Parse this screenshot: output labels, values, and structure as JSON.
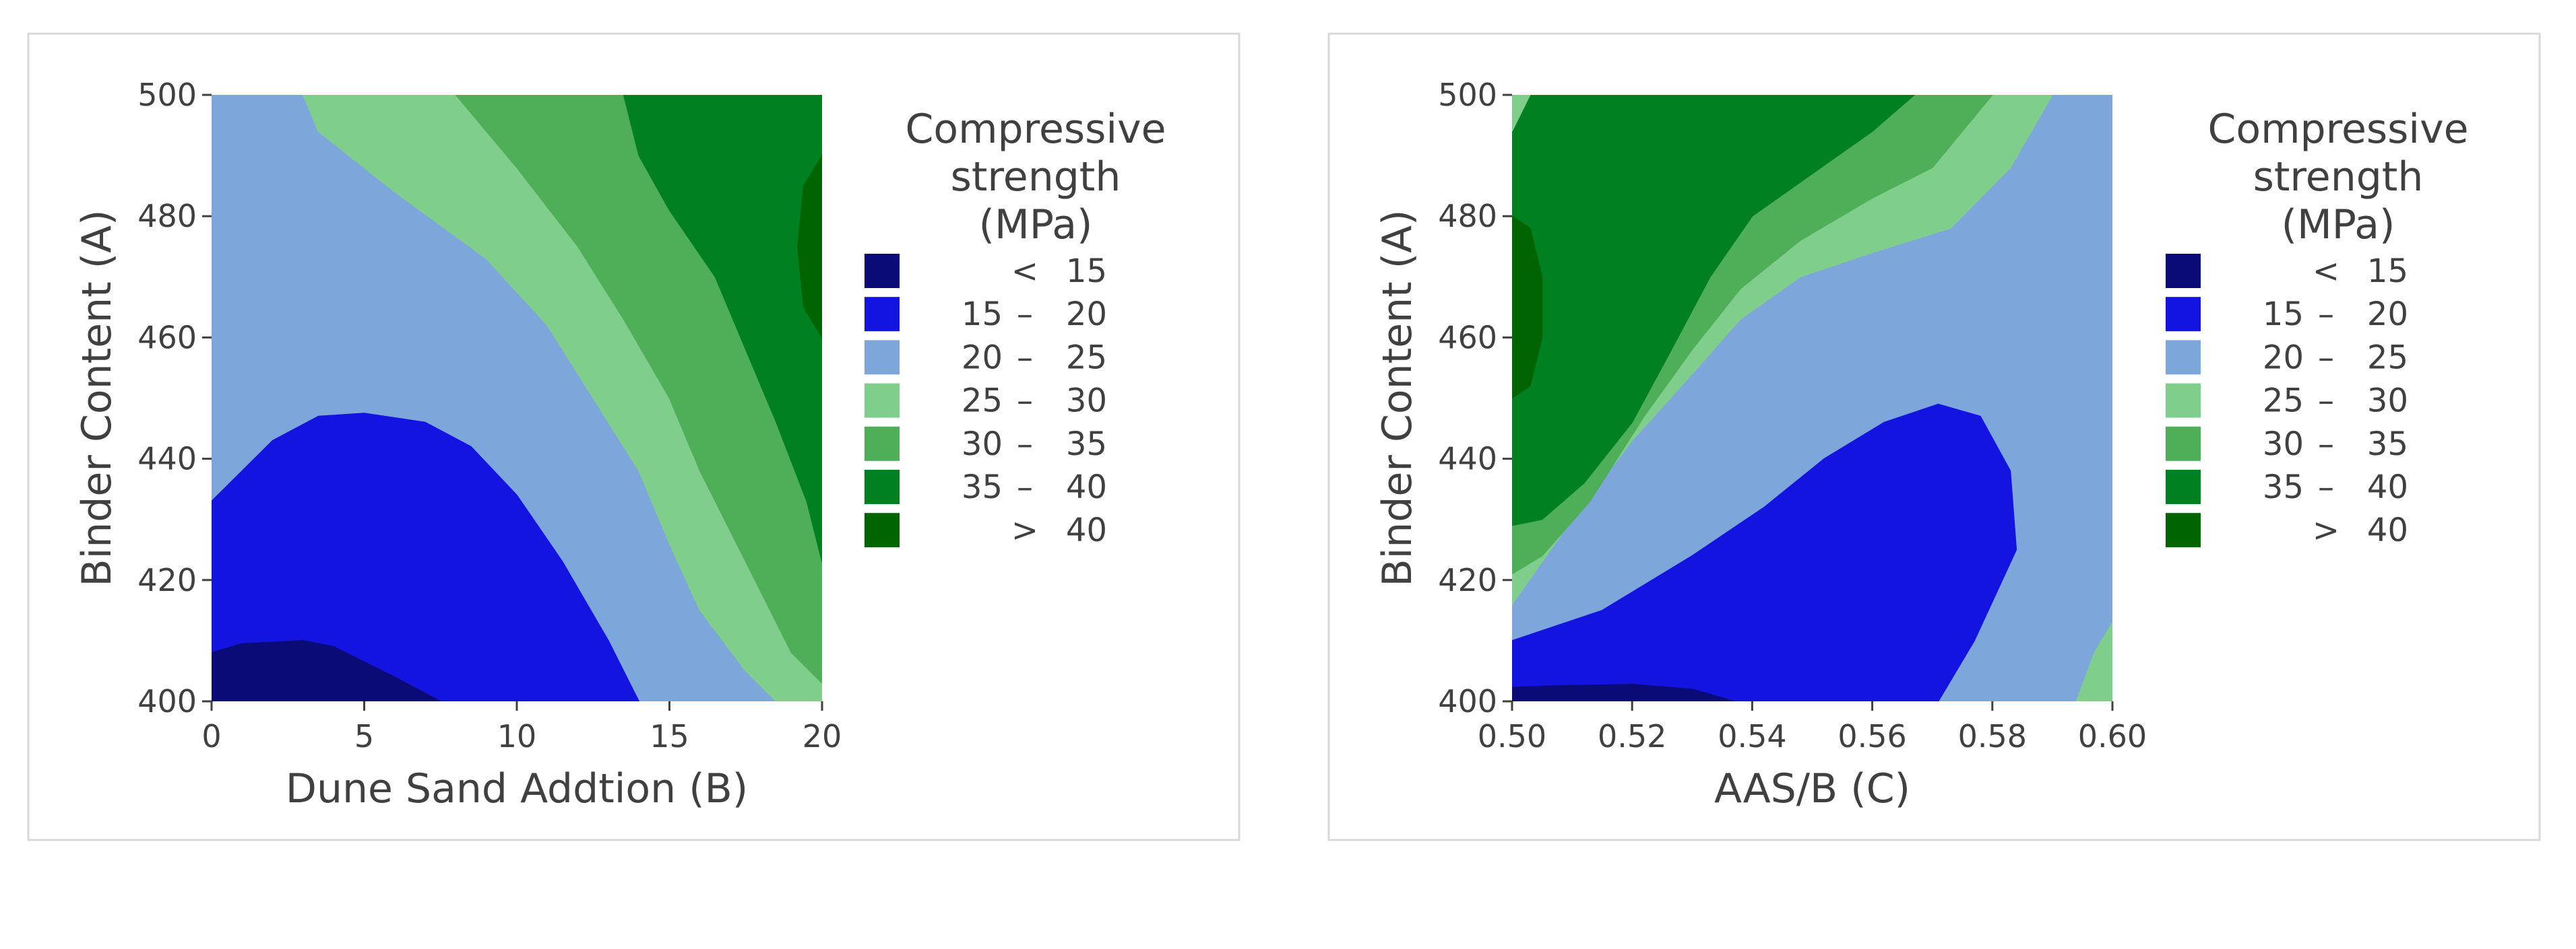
{
  "chart_data": [
    {
      "type": "contour",
      "xlabel": "Dune Sand Addtion (B)",
      "ylabel": "Binder Content (A)",
      "xlim": [
        0,
        20
      ],
      "ylim": [
        400,
        500
      ],
      "xticks": [
        "0",
        "5",
        "10",
        "15",
        "20"
      ],
      "yticks": [
        "400",
        "420",
        "440",
        "460",
        "480",
        "500"
      ],
      "legend": {
        "title_lines": [
          "Compressive",
          "strength",
          "(MPa)"
        ],
        "levels": [
          {
            "low": "",
            "sep": "<",
            "high": "15",
            "color": "#0b0b77"
          },
          {
            "low": "15",
            "sep": "–",
            "high": "20",
            "color": "#1414e0"
          },
          {
            "low": "20",
            "sep": "–",
            "high": "25",
            "color": "#7da7db"
          },
          {
            "low": "25",
            "sep": "–",
            "high": "30",
            "color": "#80ce8c"
          },
          {
            "low": "30",
            "sep": "–",
            "high": "35",
            "color": "#4faf58"
          },
          {
            "low": "35",
            "sep": "–",
            "high": "40",
            "color": "#008020"
          },
          {
            "low": "",
            "sep": ">",
            "high": "40",
            "color": "#006400"
          }
        ]
      },
      "regions": [
        {
          "level": 2,
          "points": [
            [
              0,
              400
            ],
            [
              20,
              400
            ],
            [
              20,
              500
            ],
            [
              0,
              500
            ]
          ]
        },
        {
          "level": 3,
          "points": [
            [
              3,
              500
            ],
            [
              3.5,
              494
            ],
            [
              6,
              484
            ],
            [
              9,
              473
            ],
            [
              11,
              462
            ],
            [
              12.5,
              450
            ],
            [
              14,
              438
            ],
            [
              15,
              426
            ],
            [
              16,
              415
            ],
            [
              17.5,
              405
            ],
            [
              18.5,
              400
            ],
            [
              20,
              400
            ],
            [
              20,
              500
            ]
          ]
        },
        {
          "level": 4,
          "points": [
            [
              8,
              500
            ],
            [
              10,
              488
            ],
            [
              12,
              475
            ],
            [
              13.5,
              463
            ],
            [
              15,
              450
            ],
            [
              16,
              438
            ],
            [
              17,
              428
            ],
            [
              18,
              418
            ],
            [
              19,
              408
            ],
            [
              20,
              403
            ],
            [
              20,
              500
            ]
          ]
        },
        {
          "level": 5,
          "points": [
            [
              13.5,
              500
            ],
            [
              14,
              490
            ],
            [
              15,
              481
            ],
            [
              16.5,
              470
            ],
            [
              17.5,
              458
            ],
            [
              18.5,
              446
            ],
            [
              19.5,
              433
            ],
            [
              20,
              423
            ],
            [
              20,
              500
            ]
          ]
        },
        {
          "level": 6,
          "points": [
            [
              20,
              490
            ],
            [
              19.4,
              485
            ],
            [
              19.2,
              475
            ],
            [
              19.4,
              465
            ],
            [
              20,
              460
            ]
          ]
        },
        {
          "level": 1,
          "points": [
            [
              0,
              400
            ],
            [
              14,
              400
            ],
            [
              13,
              410
            ],
            [
              11.5,
              423
            ],
            [
              10,
              434
            ],
            [
              8.5,
              442
            ],
            [
              7,
              446
            ],
            [
              5,
              447.5
            ],
            [
              3.5,
              447
            ],
            [
              2,
              443
            ],
            [
              0,
              433
            ]
          ]
        },
        {
          "level": 0,
          "points": [
            [
              0,
              400
            ],
            [
              7.5,
              400
            ],
            [
              6,
              404
            ],
            [
              4,
              409
            ],
            [
              3,
              410
            ],
            [
              1,
              409.5
            ],
            [
              0,
              408
            ]
          ]
        }
      ]
    },
    {
      "type": "contour",
      "xlabel": "AAS/B (C)",
      "ylabel": "Binder Content (A)",
      "xlim": [
        0.5,
        0.6
      ],
      "ylim": [
        400,
        500
      ],
      "xticks": [
        "0.50",
        "0.52",
        "0.54",
        "0.56",
        "0.58",
        "0.60"
      ],
      "yticks": [
        "400",
        "420",
        "440",
        "460",
        "480",
        "500"
      ],
      "legend": {
        "title_lines": [
          "Compressive",
          "strength",
          "(MPa)"
        ],
        "levels": [
          {
            "low": "",
            "sep": "<",
            "high": "15",
            "color": "#0b0b77"
          },
          {
            "low": "15",
            "sep": "–",
            "high": "20",
            "color": "#1414e0"
          },
          {
            "low": "20",
            "sep": "–",
            "high": "25",
            "color": "#7da7db"
          },
          {
            "low": "25",
            "sep": "–",
            "high": "30",
            "color": "#80ce8c"
          },
          {
            "low": "30",
            "sep": "–",
            "high": "35",
            "color": "#4faf58"
          },
          {
            "low": "35",
            "sep": "–",
            "high": "40",
            "color": "#008020"
          },
          {
            "low": "",
            "sep": ">",
            "high": "40",
            "color": "#006400"
          }
        ]
      },
      "regions": [
        {
          "level": 2,
          "points": [
            [
              0.5,
              400
            ],
            [
              0.6,
              400
            ],
            [
              0.6,
              500
            ],
            [
              0.5,
              500
            ]
          ]
        },
        {
          "level": 3,
          "points": [
            [
              0.5,
              500
            ],
            [
              0.59,
              500
            ],
            [
              0.583,
              488
            ],
            [
              0.573,
              478
            ],
            [
              0.56,
              474
            ],
            [
              0.548,
              470
            ],
            [
              0.538,
              463
            ],
            [
              0.53,
              454
            ],
            [
              0.52,
              443
            ],
            [
              0.51,
              430
            ],
            [
              0.5,
              416
            ]
          ]
        },
        {
          "level": 4,
          "points": [
            [
              0.5,
              500
            ],
            [
              0.58,
              500
            ],
            [
              0.57,
              488
            ],
            [
              0.56,
              483
            ],
            [
              0.548,
              476
            ],
            [
              0.538,
              468
            ],
            [
              0.53,
              458
            ],
            [
              0.522,
              447
            ],
            [
              0.513,
              433
            ],
            [
              0.505,
              424
            ],
            [
              0.5,
              421
            ]
          ]
        },
        {
          "level": 5,
          "points": [
            [
              0.5,
              500
            ],
            [
              0.567,
              500
            ],
            [
              0.56,
              494
            ],
            [
              0.55,
              487
            ],
            [
              0.54,
              480
            ],
            [
              0.533,
              470
            ],
            [
              0.526,
              457
            ],
            [
              0.52,
              446
            ],
            [
              0.512,
              436
            ],
            [
              0.505,
              430
            ],
            [
              0.5,
              429
            ]
          ]
        },
        {
          "level": 6,
          "points": [
            [
              0.5,
              480
            ],
            [
              0.503,
              478
            ],
            [
              0.505,
              470
            ],
            [
              0.505,
              460
            ],
            [
              0.503,
              452
            ],
            [
              0.5,
              450
            ]
          ]
        },
        {
          "level": 3,
          "points": [
            [
              0.5,
              500
            ],
            [
              0.503,
              500
            ],
            [
              0.5,
              494
            ]
          ]
        },
        {
          "level": 1,
          "points": [
            [
              0.5,
              400
            ],
            [
              0.571,
              400
            ],
            [
              0.577,
              410
            ],
            [
              0.584,
              425
            ],
            [
              0.583,
              438
            ],
            [
              0.578,
              447
            ],
            [
              0.571,
              449
            ],
            [
              0.562,
              446
            ],
            [
              0.552,
              440
            ],
            [
              0.542,
              432
            ],
            [
              0.53,
              424
            ],
            [
              0.515,
              415
            ],
            [
              0.5,
              410
            ]
          ]
        },
        {
          "level": 0,
          "points": [
            [
              0.5,
              400
            ],
            [
              0.537,
              400
            ],
            [
              0.53,
              402
            ],
            [
              0.52,
              402.8
            ],
            [
              0.505,
              402.5
            ],
            [
              0.5,
              402.3
            ]
          ]
        },
        {
          "level": 3,
          "points": [
            [
              0.6,
              400
            ],
            [
              0.594,
              400
            ],
            [
              0.597,
              408
            ],
            [
              0.6,
              413
            ]
          ]
        }
      ]
    }
  ]
}
